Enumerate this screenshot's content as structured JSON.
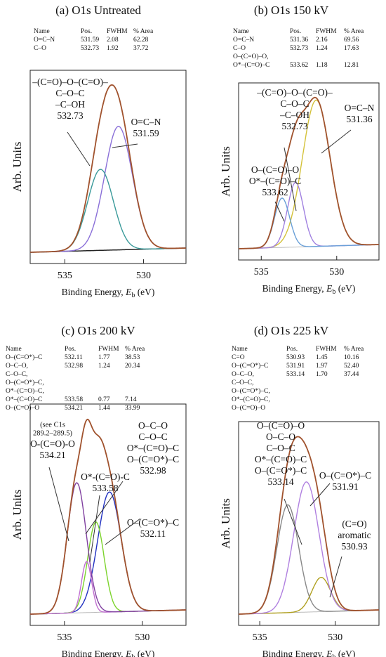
{
  "chart_data": [
    {
      "type": "xps",
      "title": "(a) O1s Untreated",
      "table": {
        "header": [
          "Name",
          "Pos.",
          "FWHM",
          "% Area"
        ],
        "rows": [
          {
            "name": [
              "O=C–N"
            ],
            "pos": "531.59",
            "fwhm": "2.08",
            "area": "62.28",
            "color": "#8a6fd8"
          },
          {
            "name": [
              "C–O"
            ],
            "pos": "532.73",
            "fwhm": "1.92",
            "area": "37.72",
            "color": "#3a9a9a"
          }
        ]
      },
      "annotations": [
        {
          "lines": [
            "–(C=O)–O–(C=O)–",
            "C–O–C",
            "–C–OH",
            "532.73"
          ]
        },
        {
          "lines": [
            "O=C–N",
            "531.59"
          ]
        }
      ],
      "envelope_color": "#a0522d",
      "xlim": [
        537.2,
        527.3
      ],
      "xticks": [
        535,
        530
      ],
      "x_label": [
        "Binding Energy, ",
        "E",
        "b",
        " (eV)"
      ],
      "y_label": "Arb. Units"
    },
    {
      "type": "xps",
      "title": "(b) O1s 150 kV",
      "table": {
        "header": [
          "Name",
          "Pos.",
          "FWHM",
          "% Area"
        ],
        "rows": [
          {
            "name": [
              "O=C–N"
            ],
            "pos": "531.36",
            "fwhm": "2.16",
            "area": "69.56",
            "color": "#d4c23a"
          },
          {
            "name": [
              "C–O"
            ],
            "pos": "532.73",
            "fwhm": "1.24",
            "area": "17.63",
            "color": "#a080e0"
          },
          {
            "name": [
              "O–(C=O)–O,",
              "O*–(C=O)–C"
            ],
            "pos": "533.62",
            "fwhm": "1.18",
            "area": "12.81",
            "color": "#6aa0d8"
          }
        ]
      },
      "annotations": [
        {
          "lines": [
            "–(C=O)–O–(C=O)–",
            "C–O–C",
            "–C–OH",
            "532.73"
          ]
        },
        {
          "lines": [
            "O=C–N",
            "531.36"
          ]
        },
        {
          "lines": [
            "O–(C=O)–O",
            "O*–(C=O)–C",
            "533.62"
          ]
        }
      ],
      "envelope_color": "#a0522d",
      "xlim": [
        536.5,
        527.2
      ],
      "xticks": [
        535,
        530
      ],
      "x_label": [
        "Binding Energy, ",
        "E",
        "b",
        " (eV)"
      ],
      "y_label": "Arb. Units"
    },
    {
      "type": "xps",
      "title": "(c) O1s 200 kV",
      "table": {
        "header": [
          "Name",
          "Pos.",
          "FWHM",
          "% Area"
        ],
        "rows": [
          {
            "name": [
              "O–(C=O*)–C"
            ],
            "pos": "532.11",
            "fwhm": "1.77",
            "area": "38.53",
            "color": "#2030c0"
          },
          {
            "name": [
              "O–C–O,",
              "C–O–C,",
              "O–(C=O*)–C,",
              "O*–(C=O)–C,"
            ],
            "pos": "532.98",
            "fwhm": "1.24",
            "area": "20.34",
            "color": "#7cd32c"
          },
          {
            "name": [
              "O*–(C=O)–C"
            ],
            "pos": "533.58",
            "fwhm": "0.77",
            "area": "7.14",
            "color": "#c070d0"
          },
          {
            "name": [
              "O–(C=O)–O"
            ],
            "pos": "534.21",
            "fwhm": "1.44",
            "area": "33.99",
            "color": "#8040a0"
          }
        ]
      },
      "annotations": [
        {
          "lines": [
            "(see C1s",
            "289.2–289.5)"
          ]
        },
        {
          "lines": [
            "O-(C=O)-O",
            "534.21"
          ]
        },
        {
          "lines": [
            "O*-(C=O)-C",
            "533.58"
          ]
        },
        {
          "lines": [
            "O–C–O",
            "C–O–C",
            "O*–(C=O)–C",
            "O–(C=O*)–C",
            "532.98"
          ]
        },
        {
          "lines": [
            "O–(C=O*)–C",
            "532.11"
          ]
        }
      ],
      "envelope_color": "#a0522d",
      "xlim": [
        537.2,
        527.2
      ],
      "xticks": [
        535,
        530
      ],
      "x_label": [
        "Binding Energy, ",
        "E",
        "b",
        " (eV)"
      ],
      "y_label": "Arb. Units"
    },
    {
      "type": "xps",
      "title": "(d) O1s 225 kV",
      "table": {
        "header": [
          "Name",
          "Pos.",
          "FWHM",
          "% Area"
        ],
        "rows": [
          {
            "name": [
              "C=O"
            ],
            "pos": "530.93",
            "fwhm": "1.45",
            "area": "10.16",
            "color": "#b0a020"
          },
          {
            "name": [
              "O–(C=O*)–C"
            ],
            "pos": "531.91",
            "fwhm": "1.97",
            "area": "52.40",
            "color": "#b080e0"
          },
          {
            "name": [
              "O–C–O,",
              "C–O–C,",
              "O–(C=O*)–C,",
              "O*–(C=O)–C,",
              "O–(C=O)–O"
            ],
            "pos": "533.14",
            "fwhm": "1.70",
            "area": "37.44",
            "color": "#888888"
          }
        ]
      },
      "annotations": [
        {
          "lines": [
            "O–(C=O)–O",
            "O–C–O",
            "C–O–C",
            "O*–(C=O)–C",
            "O–(C=O*)–C",
            "533.14"
          ]
        },
        {
          "lines": [
            "O–(C=O*)–C",
            "531.91"
          ]
        },
        {
          "lines": [
            "(C=O)",
            "aromatic",
            "530.93"
          ]
        }
      ],
      "envelope_color": "#a0522d",
      "xlim": [
        536.4,
        527.1
      ],
      "xticks": [
        535,
        530
      ],
      "x_label": [
        "Binding Energy, ",
        "E",
        "b",
        " (eV)"
      ],
      "y_label": "Arb. Units"
    }
  ]
}
